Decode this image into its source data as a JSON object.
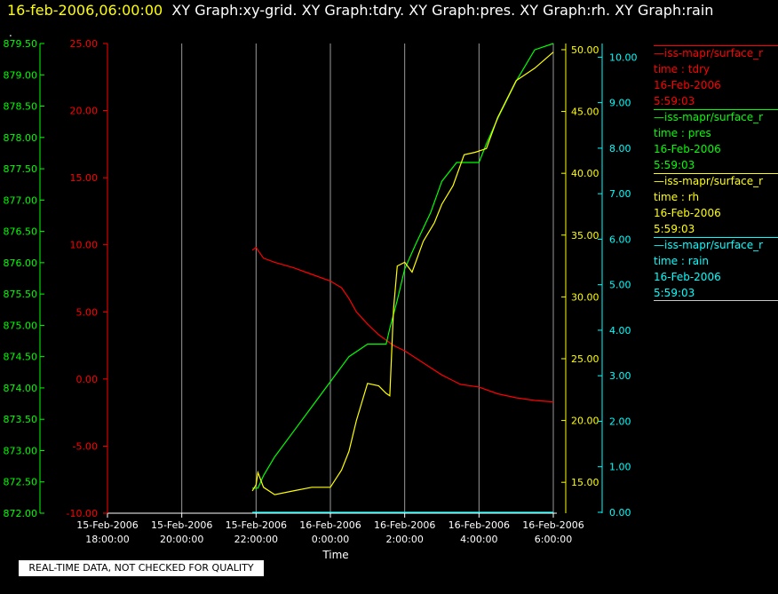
{
  "header": {
    "datetime": "16-feb-2006,06:00:00",
    "graphs": "XY Graph:xy-grid.  XY Graph:tdry.  XY Graph:pres.  XY Graph:rh.  XY Graph:rain",
    "dot": "."
  },
  "footer": {
    "disclaimer": "REAL-TIME DATA, NOT CHECKED FOR QUALITY"
  },
  "colors": {
    "tdry": "#ff0000",
    "pres": "#00ff00",
    "rh": "#ffff00",
    "rain": "#00ffff",
    "grid": "#ffffff",
    "axis_time": "#ffffff"
  },
  "legend": [
    {
      "header": "—iss-mapr/surface_r",
      "line1": "time : tdry",
      "line2": "16-Feb-2006",
      "line3": "5:59:03",
      "color": "#ff0000"
    },
    {
      "header": "—iss-mapr/surface_r",
      "line1": "time : pres",
      "line2": "16-Feb-2006",
      "line3": "5:59:03",
      "color": "#00ff00"
    },
    {
      "header": "—iss-mapr/surface_r",
      "line1": "time : rh",
      "line2": "16-Feb-2006",
      "line3": "5:59:03",
      "color": "#ffff00"
    },
    {
      "header": "—iss-mapr/surface_r",
      "line1": "time : rain",
      "line2": "16-Feb-2006",
      "line3": "5:59:03",
      "color": "#00ffff"
    }
  ],
  "chart_data": {
    "type": "line",
    "xlabel": "Time",
    "x_ticks": [
      {
        "h": 18,
        "l1": "15-Feb-2006",
        "l2": "18:00:00"
      },
      {
        "h": 20,
        "l1": "15-Feb-2006",
        "l2": "20:00:00"
      },
      {
        "h": 22,
        "l1": "15-Feb-2006",
        "l2": "22:00:00"
      },
      {
        "h": 24,
        "l1": "16-Feb-2006",
        "l2": "0:00:00"
      },
      {
        "h": 26,
        "l1": "16-Feb-2006",
        "l2": "2:00:00"
      },
      {
        "h": 28,
        "l1": "16-Feb-2006",
        "l2": "4:00:00"
      },
      {
        "h": 30,
        "l1": "16-Feb-2006",
        "l2": "6:00:00"
      }
    ],
    "grid": true,
    "axes": {
      "pres": {
        "min": 872.0,
        "max": 879.5,
        "ticks": [
          "872.00",
          "872.50",
          "873.00",
          "873.50",
          "874.00",
          "874.50",
          "875.00",
          "875.50",
          "876.00",
          "876.50",
          "877.00",
          "877.50",
          "878.00",
          "878.50",
          "879.00",
          "879.50"
        ]
      },
      "tdry": {
        "min": -10,
        "max": 25,
        "ticks": [
          "-10.00",
          "-5.00",
          "0.00",
          "5.00",
          "10.00",
          "15.00",
          "20.00",
          "25.00"
        ]
      },
      "rh": {
        "min": 12.5,
        "max": 50.5,
        "ticks": [
          "15.00",
          "20.00",
          "25.00",
          "30.00",
          "35.00",
          "40.00",
          "45.00",
          "50.00"
        ]
      },
      "rain": {
        "min": -0.02,
        "max": 10.3,
        "ticks": [
          "0.00",
          "1.00",
          "2.00",
          "3.00",
          "4.00",
          "5.00",
          "6.00",
          "7.00",
          "8.00",
          "9.00",
          "10.00"
        ]
      }
    },
    "series": [
      {
        "key": "tdry",
        "x": [
          21.9,
          22.0,
          22.1,
          22.2,
          22.5,
          23.0,
          23.5,
          24.0,
          24.3,
          24.5,
          24.7,
          25.0,
          25.3,
          25.7,
          26.0,
          26.5,
          27.0,
          27.5,
          28.0,
          28.5,
          29.0,
          29.5,
          30.0
        ],
        "y": [
          9.6,
          9.8,
          9.4,
          9.0,
          8.7,
          8.3,
          7.8,
          7.3,
          6.8,
          6.0,
          5.0,
          4.1,
          3.3,
          2.5,
          2.1,
          1.2,
          0.3,
          -0.4,
          -0.6,
          -1.1,
          -1.4,
          -1.6,
          -1.7
        ]
      },
      {
        "key": "pres",
        "x": [
          21.9,
          22.05,
          22.2,
          22.5,
          23.0,
          23.5,
          24.0,
          24.5,
          25.0,
          25.5,
          25.6,
          25.8,
          26.0,
          26.3,
          26.7,
          27.0,
          27.4,
          27.8,
          28.0,
          28.2,
          28.5,
          29.0,
          29.5,
          30.0
        ],
        "y": [
          872.4,
          872.4,
          872.6,
          872.9,
          873.3,
          873.7,
          874.1,
          874.5,
          874.7,
          874.7,
          874.95,
          875.4,
          875.9,
          876.3,
          876.8,
          877.3,
          877.6,
          877.6,
          877.6,
          877.9,
          878.3,
          878.9,
          879.4,
          879.5
        ]
      },
      {
        "key": "rh",
        "x": [
          21.9,
          22.0,
          22.05,
          22.2,
          22.5,
          23.0,
          23.5,
          24.0,
          24.3,
          24.5,
          24.7,
          25.0,
          25.3,
          25.5,
          25.6,
          25.7,
          25.8,
          26.0,
          26.2,
          26.5,
          26.8,
          27.0,
          27.3,
          27.6,
          27.9,
          28.2,
          28.5,
          29.0,
          29.5,
          30.0
        ],
        "y": [
          14.3,
          14.8,
          15.8,
          14.6,
          14.0,
          14.3,
          14.6,
          14.6,
          16.0,
          17.5,
          20.0,
          23.0,
          22.8,
          22.2,
          22.0,
          29.0,
          32.5,
          32.8,
          32.0,
          34.5,
          36.0,
          37.5,
          39.0,
          41.5,
          41.7,
          42.0,
          44.5,
          47.5,
          48.5,
          49.8
        ]
      },
      {
        "key": "rain",
        "x": [
          21.9,
          30.0
        ],
        "y": [
          0.0,
          0.0
        ]
      }
    ]
  }
}
